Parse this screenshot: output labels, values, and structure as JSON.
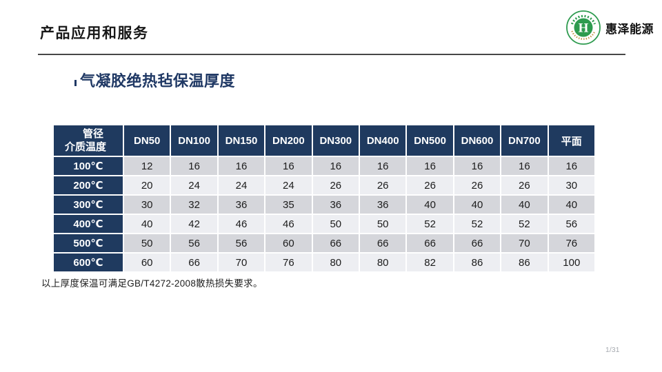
{
  "header": {
    "title": "产品应用和服务",
    "company": "惠泽能源",
    "logo_emblem_letter": "H",
    "logo_green": "#2e9b4f"
  },
  "content": {
    "subtitle": "气凝胶绝热毡保温厚度",
    "note": "以上厚度保温可满足GB/T4272-2008散热损失要求。"
  },
  "table": {
    "corner_top": "管径",
    "corner_bottom": "介质温度",
    "columns": [
      "DN50",
      "DN100",
      "DN150",
      "DN200",
      "DN300",
      "DN400",
      "DN500",
      "DN600",
      "DN700",
      "平面"
    ],
    "rows": [
      {
        "label": "100℃",
        "values": [
          12,
          16,
          16,
          16,
          16,
          16,
          16,
          16,
          16,
          16
        ]
      },
      {
        "label": "200℃",
        "values": [
          20,
          24,
          24,
          24,
          26,
          26,
          26,
          26,
          26,
          30
        ]
      },
      {
        "label": "300℃",
        "values": [
          30,
          32,
          36,
          35,
          36,
          36,
          40,
          40,
          40,
          40
        ]
      },
      {
        "label": "400℃",
        "values": [
          40,
          42,
          46,
          46,
          50,
          50,
          52,
          52,
          52,
          56
        ]
      },
      {
        "label": "500℃",
        "values": [
          50,
          56,
          56,
          60,
          66,
          66,
          66,
          66,
          70,
          76
        ]
      },
      {
        "label": "600℃",
        "values": [
          60,
          66,
          70,
          76,
          80,
          80,
          82,
          86,
          86,
          100
        ]
      }
    ],
    "colors": {
      "header_bg": "#1f3a5f",
      "band_dark": "#d5d6db",
      "band_light": "#edeef2"
    }
  },
  "footer": {
    "page_number": "1/31"
  }
}
